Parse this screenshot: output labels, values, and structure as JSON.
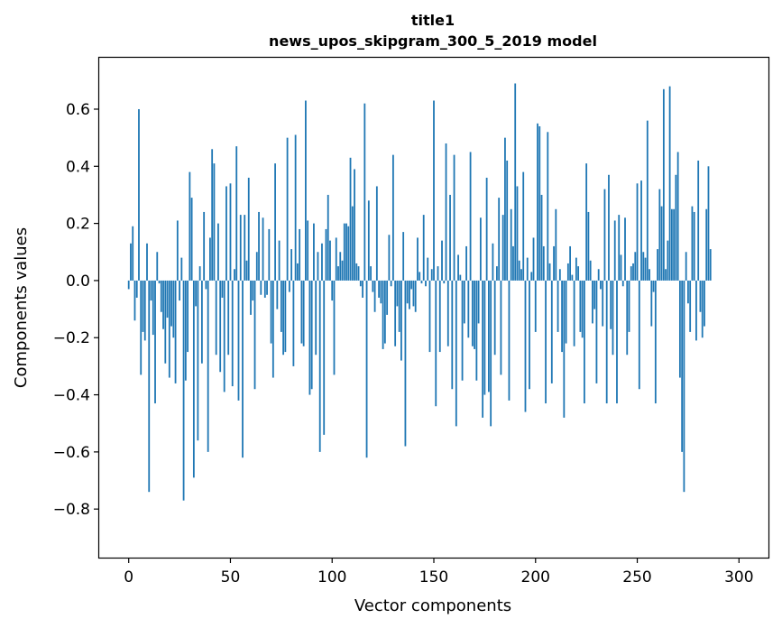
{
  "chart_data": {
    "type": "bar",
    "title": "title1",
    "subtitle": "news_upos_skipgram_300_5_2019 model",
    "xlabel": "Vector components",
    "ylabel": "Components values",
    "xlim": [
      -14.5,
      314.5
    ],
    "ylim": [
      -0.97,
      0.78
    ],
    "xticks": [
      0,
      50,
      100,
      150,
      200,
      250,
      300
    ],
    "xtick_labels": [
      "0",
      "50",
      "100",
      "150",
      "200",
      "250",
      "300"
    ],
    "yticks": [
      -0.8,
      -0.6,
      -0.4,
      -0.2,
      0.0,
      0.2,
      0.4,
      0.6
    ],
    "ytick_labels": [
      "−0.8",
      "−0.6",
      "−0.4",
      "−0.2",
      "0.0",
      "0.2",
      "0.4",
      "0.6"
    ],
    "grid": false,
    "bar_color": "#1f77b4",
    "x_start": 0,
    "values": [
      -0.03,
      0.13,
      0.19,
      -0.14,
      -0.06,
      0.6,
      -0.33,
      -0.18,
      -0.21,
      0.13,
      -0.74,
      -0.07,
      -0.19,
      -0.43,
      0.1,
      -0.01,
      -0.11,
      -0.17,
      -0.29,
      -0.13,
      -0.34,
      -0.16,
      -0.2,
      -0.36,
      0.21,
      -0.07,
      0.08,
      -0.77,
      -0.35,
      -0.25,
      0.38,
      0.29,
      -0.69,
      -0.09,
      -0.56,
      0.05,
      -0.29,
      0.24,
      -0.03,
      -0.6,
      0.15,
      0.46,
      0.41,
      -0.26,
      0.2,
      -0.32,
      -0.06,
      -0.39,
      0.33,
      -0.26,
      0.34,
      -0.37,
      0.04,
      0.47,
      -0.42,
      0.23,
      -0.62,
      0.23,
      0.07,
      0.36,
      -0.12,
      -0.07,
      -0.38,
      0.1,
      0.24,
      -0.05,
      0.22,
      -0.06,
      -0.05,
      0.18,
      -0.22,
      -0.34,
      0.41,
      -0.1,
      0.14,
      -0.18,
      -0.26,
      -0.25,
      0.5,
      -0.04,
      0.11,
      -0.3,
      0.51,
      0.06,
      0.18,
      -0.22,
      -0.23,
      0.63,
      0.21,
      -0.4,
      -0.38,
      0.2,
      -0.26,
      0.1,
      -0.6,
      0.13,
      -0.54,
      0.18,
      0.3,
      0.14,
      -0.07,
      -0.33,
      0.15,
      0.05,
      0.1,
      0.07,
      0.2,
      0.2,
      0.19,
      0.43,
      0.26,
      0.39,
      0.06,
      0.05,
      -0.02,
      -0.06,
      0.62,
      -0.62,
      0.28,
      0.05,
      -0.04,
      -0.11,
      0.33,
      -0.06,
      -0.08,
      -0.24,
      -0.22,
      -0.12,
      0.16,
      -0.02,
      0.44,
      -0.23,
      -0.09,
      -0.18,
      -0.28,
      0.17,
      -0.58,
      -0.08,
      -0.1,
      -0.03,
      -0.09,
      -0.11,
      0.15,
      0.03,
      -0.01,
      0.23,
      -0.02,
      0.08,
      -0.25,
      0.04,
      0.63,
      -0.44,
      0.05,
      -0.25,
      0.14,
      -0.01,
      0.48,
      -0.23,
      0.3,
      -0.38,
      0.44,
      -0.51,
      0.09,
      0.02,
      -0.35,
      -0.15,
      0.12,
      -0.2,
      0.45,
      -0.23,
      -0.24,
      -0.35,
      -0.15,
      0.22,
      -0.48,
      -0.4,
      0.36,
      -0.39,
      -0.51,
      0.13,
      -0.26,
      0.05,
      0.29,
      -0.33,
      0.23,
      0.5,
      0.42,
      -0.42,
      0.25,
      0.12,
      0.69,
      0.33,
      0.07,
      0.04,
      0.38,
      -0.46,
      0.08,
      -0.38,
      0.03,
      0.15,
      -0.18,
      0.55,
      0.54,
      0.3,
      0.12,
      -0.43,
      0.52,
      0.06,
      -0.36,
      0.12,
      0.25,
      -0.18,
      0.04,
      -0.25,
      -0.48,
      -0.22,
      0.06,
      0.12,
      0.02,
      -0.23,
      0.08,
      0.05,
      -0.18,
      -0.2,
      -0.43,
      0.41,
      0.24,
      0.07,
      -0.15,
      -0.1,
      -0.36,
      0.04,
      -0.03,
      -0.16,
      0.32,
      -0.43,
      0.37,
      -0.17,
      -0.26,
      0.21,
      -0.43,
      0.23,
      0.09,
      -0.02,
      0.22,
      -0.26,
      -0.18,
      0.05,
      0.06,
      0.1,
      0.34,
      -0.38,
      0.35,
      0.1,
      0.08,
      0.56,
      0.04,
      -0.16,
      -0.04,
      -0.43,
      0.11,
      0.32,
      0.26,
      0.67,
      0.04,
      0.14,
      0.68,
      0.25,
      0.25,
      0.37,
      0.45,
      -0.34,
      -0.6,
      -0.74,
      0.1,
      -0.08,
      -0.18,
      0.26,
      0.24,
      -0.21,
      0.42,
      -0.11,
      -0.2,
      -0.16,
      0.25,
      0.4,
      0.11
    ]
  }
}
